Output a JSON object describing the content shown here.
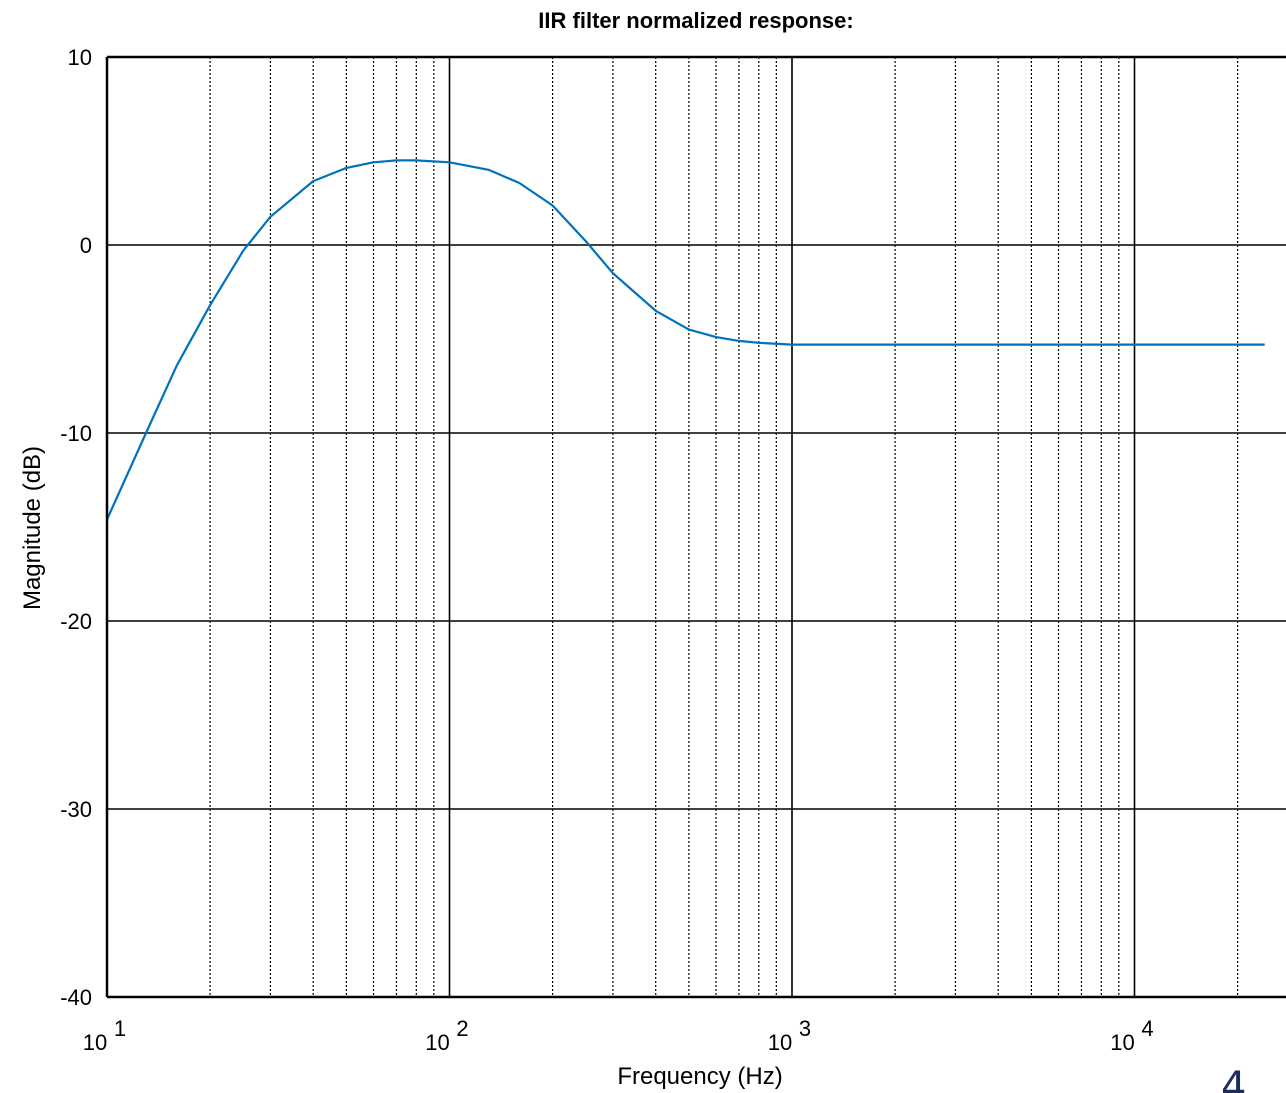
{
  "chart_data": {
    "type": "line",
    "title": "IIR filter normalized response:",
    "xlabel": "Frequency (Hz)",
    "ylabel": "Magnitude (dB)",
    "xscale": "log",
    "xlim": [
      10,
      25000
    ],
    "ylim": [
      -40,
      10
    ],
    "yticks": [
      10,
      0,
      -10,
      -20,
      -30,
      -40
    ],
    "ytick_labels": [
      "10",
      "0",
      "-10",
      "-20",
      "-30",
      "-40"
    ],
    "xticks": [
      10,
      100,
      1000,
      10000
    ],
    "xtick_labels": [
      {
        "base": "10",
        "exp": "1"
      },
      {
        "base": "10",
        "exp": "2"
      },
      {
        "base": "10",
        "exp": "3"
      },
      {
        "base": "10",
        "exp": "4"
      }
    ],
    "grid": true,
    "minor_grid": true,
    "line_color": "#0072bd",
    "series": [
      {
        "x": [
          10,
          13,
          16,
          20,
          25,
          30,
          40,
          50,
          60,
          70,
          80,
          100,
          130,
          160,
          200,
          250,
          300,
          400,
          500,
          600,
          700,
          800,
          1000,
          2000,
          5000,
          10000,
          24000
        ],
        "y": [
          -14.6,
          -10.0,
          -6.4,
          -3.2,
          -0.3,
          1.5,
          3.4,
          4.1,
          4.4,
          4.5,
          4.5,
          4.4,
          4.0,
          3.3,
          2.1,
          0.2,
          -1.5,
          -3.5,
          -4.5,
          -4.9,
          -5.1,
          -5.2,
          -5.3,
          -5.3,
          -5.3,
          -5.3,
          -5.3
        ]
      }
    ]
  },
  "corner_mark": "4"
}
